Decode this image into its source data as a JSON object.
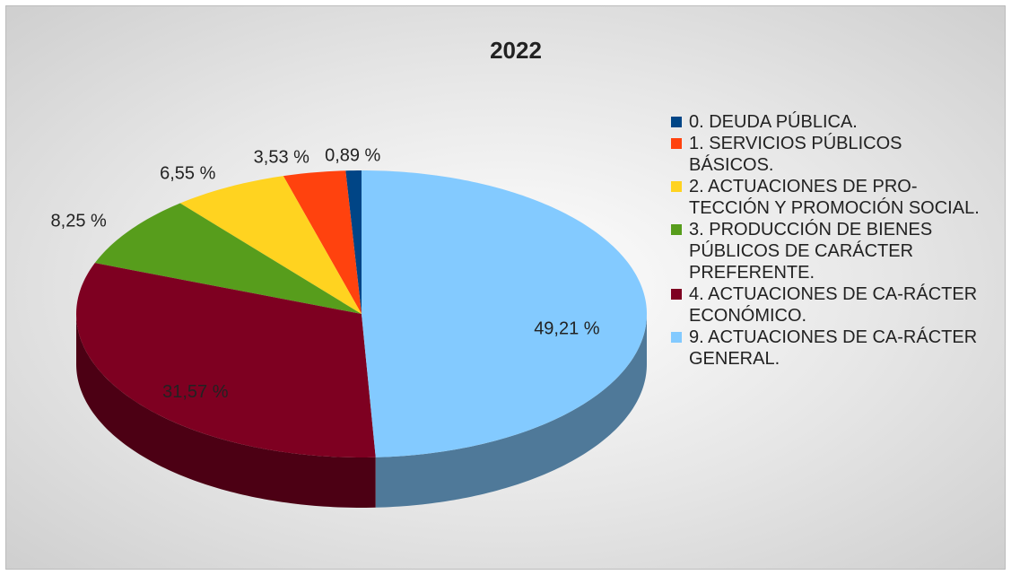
{
  "chart_data": {
    "type": "pie",
    "title": "2022",
    "categories": [
      "0. DEUDA PÚBLICA.",
      "1. SERVICIOS PÚBLICOS BÁSICOS.",
      "2. ACTUACIONES DE PRO-TECCIÓN Y PROMOCIÓN SOCIAL.",
      "3. PRODUCCIÓN DE BIENES PÚBLICOS DE CARÁCTER PREFERENTE.",
      "4. ACTUACIONES DE CA-RÁCTER ECONÓMICO.",
      "9. ACTUACIONES DE CA-RÁCTER GENERAL."
    ],
    "values": [
      0.89,
      3.53,
      6.55,
      8.25,
      31.57,
      49.21
    ],
    "value_labels": [
      "0,89 %",
      "3,53 %",
      "6,55 %",
      "8,25 %",
      "31,57 %",
      "49,21 %"
    ],
    "colors": [
      "#004586",
      "#ff420e",
      "#ffd320",
      "#579d1c",
      "#7e0021",
      "#83caff"
    ],
    "legend": "right"
  }
}
